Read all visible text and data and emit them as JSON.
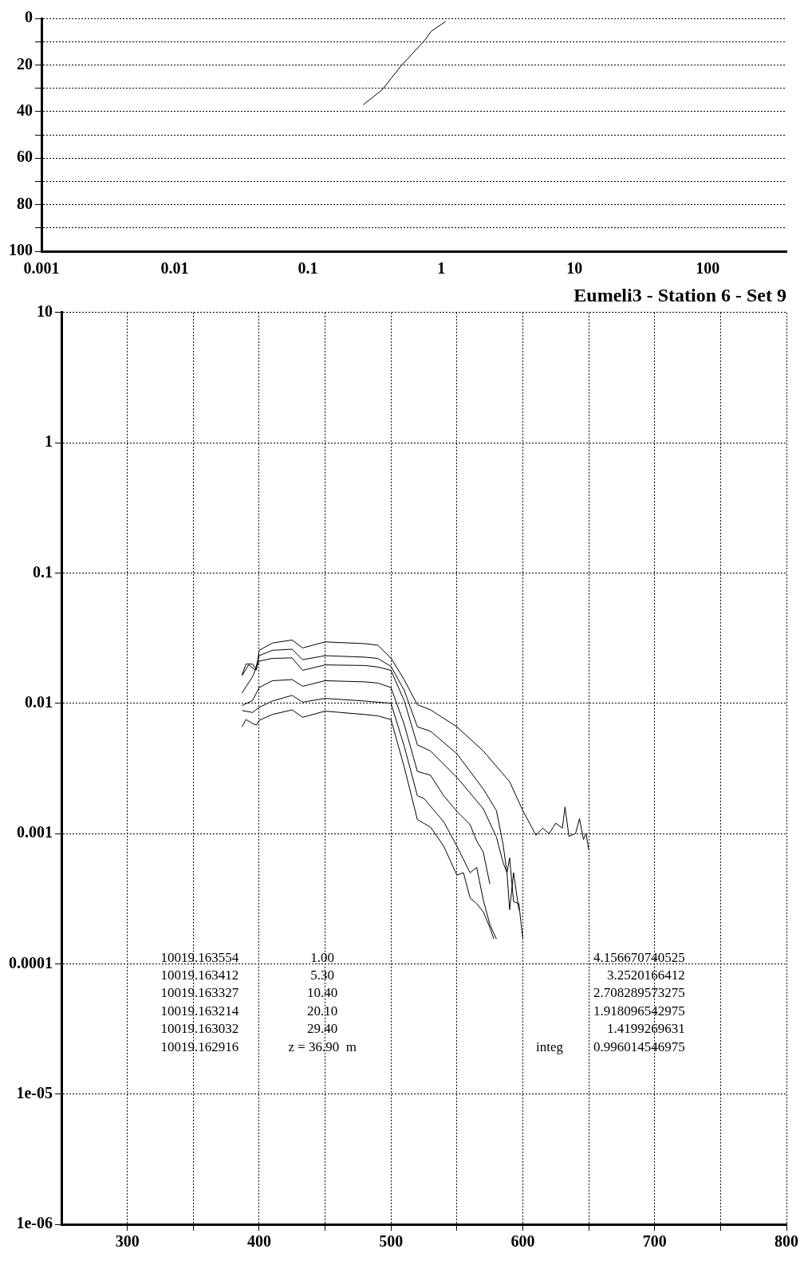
{
  "chart_data": [
    {
      "type": "line",
      "log": "x",
      "grid": "y",
      "legend": false,
      "marker": "none",
      "line_style": "solid",
      "xlim": [
        0.001,
        390
      ],
      "xticks": [
        0.001,
        0.01,
        0.1,
        1,
        10,
        100
      ],
      "ylim": [
        100,
        0
      ],
      "yticks": [
        0,
        {
          "value": 10,
          "label": null
        },
        20,
        {
          "value": 30,
          "label": null
        },
        40,
        {
          "value": 50,
          "label": null
        },
        60,
        {
          "value": 70,
          "label": null
        },
        80,
        {
          "value": 90,
          "label": null
        },
        100
      ],
      "series": [
        {
          "color": "#000000",
          "x": [
            1.08,
            0.84,
            0.75,
            0.5,
            0.36,
            0.26
          ],
          "values": [
            1.3,
            5.6,
            9.5,
            20.4,
            30.7,
            37.1
          ]
        }
      ]
    },
    {
      "type": "line",
      "title": "Eumeli3 - Station 6 - Set 9",
      "log": "y",
      "grid": true,
      "legend": false,
      "marker": "none",
      "line_style": "solid",
      "xlim": [
        250,
        800
      ],
      "xticks": [
        300,
        {
          "value": 350,
          "label": null
        },
        400,
        {
          "value": 450,
          "label": null
        },
        500,
        {
          "value": 550,
          "label": null
        },
        600,
        {
          "value": 650,
          "label": null
        },
        700,
        {
          "value": 750,
          "label": null
        },
        800
      ],
      "ylim": [
        1e-06,
        10
      ],
      "yticks": [
        10,
        1,
        0.1,
        0.01,
        0.001,
        0.0001,
        {
          "value": 1e-05,
          "label": "1e-05"
        },
        {
          "value": 1e-06,
          "label": "1e-06"
        }
      ],
      "annotations": [
        "10019.163554",
        "1.00",
        "4.156670740525",
        "10019.163412",
        "5.30",
        "3.2520166412",
        "10019.163327",
        "10.40",
        "2.708289573275",
        "10019.163214",
        "20.10",
        "1.918096542975",
        "10019.163032",
        "29.40",
        "1.4199269631",
        "10019.162916",
        "z = 36.90  m",
        "integ",
        "0.996014546975"
      ],
      "series": [
        {
          "color": "#000000",
          "x": [
            387,
            390,
            395,
            398,
            400,
            410,
            425,
            433,
            450,
            480,
            490,
            500,
            510,
            520,
            530,
            550,
            570,
            590,
            600,
            610,
            615,
            620,
            625,
            630,
            632,
            635,
            640,
            643,
            646,
            648,
            650
          ],
          "values": [
            0.0165,
            0.02,
            0.02,
            0.018,
            0.0255,
            0.029,
            0.0306,
            0.0266,
            0.0296,
            0.0287,
            0.0279,
            0.0222,
            0.0152,
            0.00975,
            0.0089,
            0.0066,
            0.0043,
            0.0025,
            0.0015,
            0.00097,
            0.0011,
            0.001,
            0.0012,
            0.0011,
            0.0016,
            0.00095,
            0.001,
            0.0013,
            0.0009,
            0.001,
            0.00075
          ]
        },
        {
          "color": "#000000",
          "x": [
            387,
            392,
            397,
            400,
            410,
            425,
            433,
            450,
            480,
            490,
            500,
            510,
            520,
            530,
            550,
            570,
            580,
            585,
            588,
            590,
            593,
            597,
            600
          ],
          "values": [
            0.0163,
            0.0197,
            0.018,
            0.0232,
            0.0255,
            0.026,
            0.0216,
            0.0232,
            0.0226,
            0.0221,
            0.0192,
            0.0126,
            0.0066,
            0.0061,
            0.0041,
            0.0022,
            0.0015,
            0.00083,
            0.0005,
            0.00065,
            0.0003,
            0.00029,
            0.000155
          ]
        },
        {
          "color": "#000000",
          "x": [
            387,
            395,
            400,
            410,
            425,
            433,
            450,
            480,
            490,
            500,
            510,
            520,
            530,
            550,
            570,
            580,
            585,
            588,
            590,
            593,
            597
          ],
          "values": [
            0.012,
            0.016,
            0.0211,
            0.0221,
            0.0223,
            0.0179,
            0.0197,
            0.0195,
            0.019,
            0.0179,
            0.0105,
            0.0048,
            0.0043,
            0.0027,
            0.00155,
            0.00094,
            0.0006,
            0.0005,
            0.00026,
            0.0005,
            0.00026
          ]
        },
        {
          "color": "#000000",
          "x": [
            387,
            395,
            400,
            410,
            425,
            433,
            450,
            480,
            490,
            500,
            510,
            520,
            530,
            540,
            550,
            560,
            565,
            570,
            575
          ],
          "values": [
            0.0096,
            0.0105,
            0.0132,
            0.0149,
            0.0152,
            0.0135,
            0.0149,
            0.0146,
            0.0143,
            0.0132,
            0.0069,
            0.003,
            0.0028,
            0.00195,
            0.00148,
            0.00117,
            0.00088,
            0.00072,
            0.00041
          ]
        },
        {
          "color": "#000000",
          "x": [
            387,
            395,
            400,
            410,
            425,
            433,
            450,
            480,
            490,
            500,
            510,
            520,
            525,
            530,
            540,
            550,
            560,
            565,
            570,
            575,
            580
          ],
          "values": [
            0.0088,
            0.0085,
            0.0093,
            0.0104,
            0.0115,
            0.0102,
            0.0109,
            0.0104,
            0.0102,
            0.01,
            0.0047,
            0.00195,
            0.00186,
            0.00162,
            0.00123,
            0.0008,
            0.0005,
            0.00055,
            0.00031,
            0.0002,
            0.000155
          ]
        },
        {
          "color": "#000000",
          "x": [
            387,
            390,
            395,
            398,
            400,
            410,
            425,
            433,
            450,
            480,
            490,
            500,
            510,
            520,
            530,
            540,
            550,
            555,
            560,
            565,
            570,
            575,
            578
          ],
          "values": [
            0.0066,
            0.0075,
            0.007,
            0.0068,
            0.0074,
            0.0082,
            0.0089,
            0.0078,
            0.0087,
            0.0082,
            0.008,
            0.0075,
            0.00325,
            0.00128,
            0.00112,
            0.0008,
            0.00048,
            0.0005,
            0.00032,
            0.00029,
            0.00025,
            0.00019,
            0.000155
          ]
        }
      ]
    }
  ]
}
